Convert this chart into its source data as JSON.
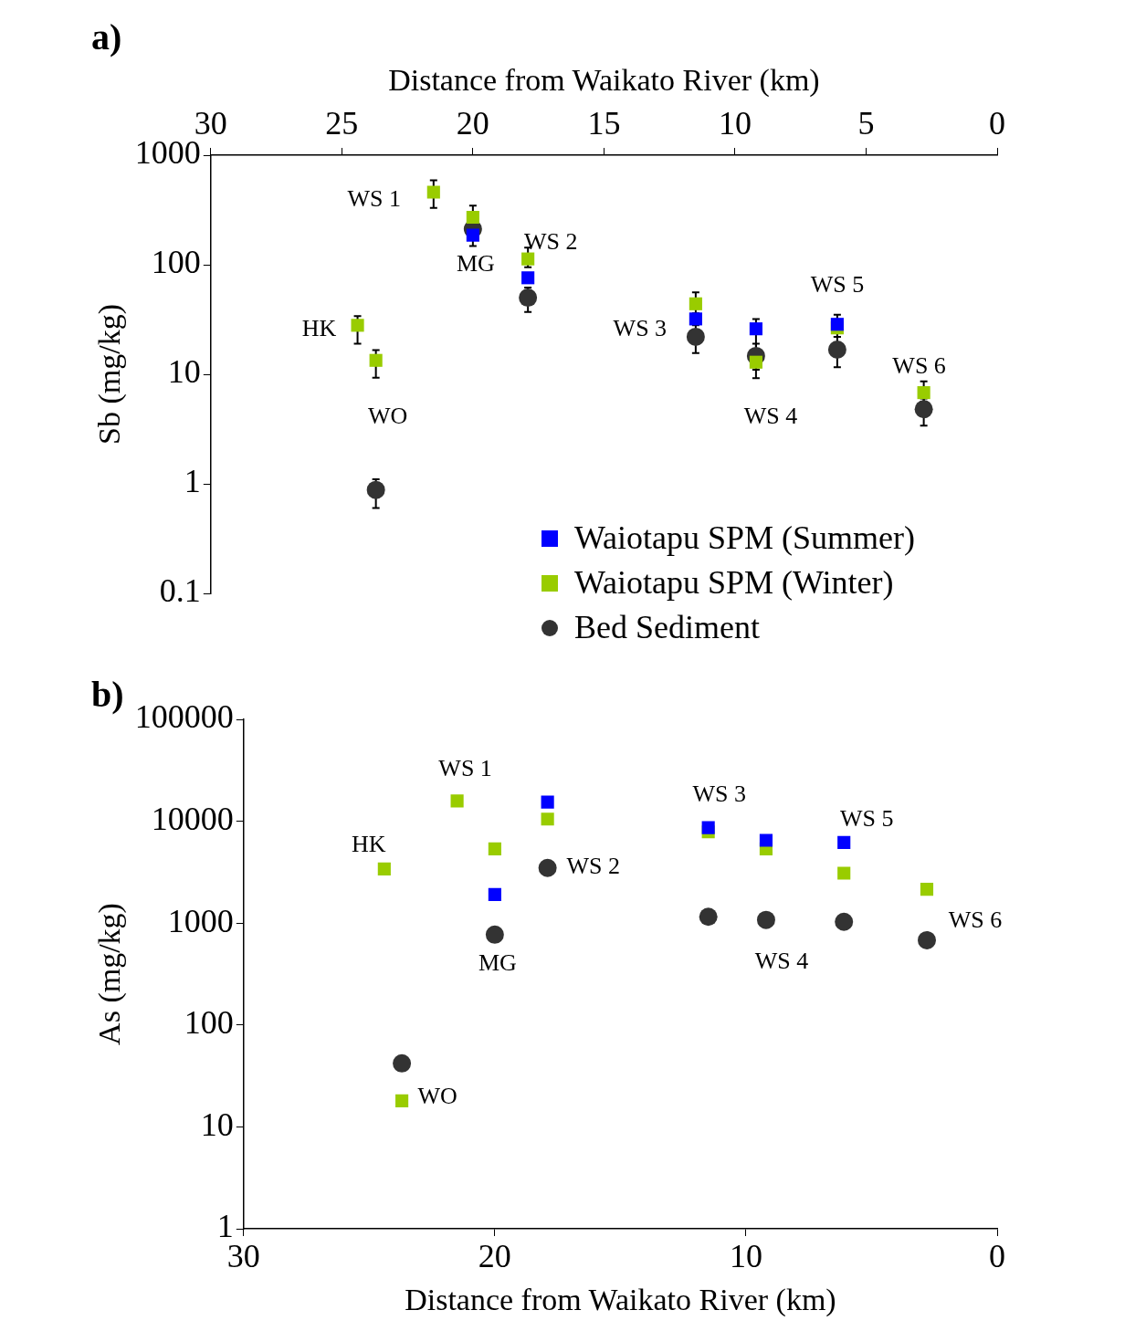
{
  "chart_data": [
    {
      "type": "scatter",
      "title": "a)",
      "xlabel": "Distance from Waikato River (km)",
      "ylabel": "Sb (mg/kg)",
      "xlim": [
        30,
        0
      ],
      "xticks": [
        30,
        25,
        20,
        15,
        10,
        5,
        0
      ],
      "ylim": [
        0.1,
        1000
      ],
      "yticks": [
        0.1,
        1,
        10,
        100,
        1000
      ],
      "log": "y",
      "grid": false,
      "legend": "bottom right",
      "series": [
        {
          "name": "Waiotapu SPM (Summer)",
          "color": "#0000ff",
          "marker": "square",
          "x": [
            20.0,
            17.9,
            11.5,
            9.2,
            6.1
          ],
          "values": [
            186,
            76,
            32,
            26,
            28.6
          ]
        },
        {
          "name": "Waiotapu SPM (Winter)",
          "color": "#99cc00",
          "marker": "square",
          "x": [
            24.4,
            23.7,
            21.5,
            20.0,
            17.9,
            11.5,
            9.2,
            6.1,
            2.8
          ],
          "values": [
            28,
            13.4,
            460,
            271,
            113,
            44,
            12.9,
            26.5,
            6.8
          ],
          "errors": [
            [
              19,
              34
            ],
            [
              9.3,
              16.6
            ],
            [
              330,
              590
            ],
            [
              220,
              347
            ],
            [
              95,
              143
            ],
            [
              36,
              56
            ],
            [
              9.2,
              32
            ],
            [
              22,
              35
            ],
            [
              5.6,
              8.6
            ]
          ]
        },
        {
          "name": "Bed Sediment",
          "color": "#333333",
          "marker": "circle",
          "x": [
            23.7,
            20.0,
            17.9,
            11.5,
            9.2,
            6.1,
            2.8
          ],
          "values": [
            0.88,
            212,
            50,
            22,
            14.7,
            16.8,
            4.8
          ],
          "errors": [
            [
              0.6,
              1.1
            ],
            [
              148,
              212
            ],
            [
              37,
              62
            ],
            [
              15.6,
              28
            ],
            [
              11,
              19
            ],
            [
              11.6,
              22
            ],
            [
              3.4,
              6
            ]
          ]
        }
      ],
      "annotations": [
        {
          "text": "WS 1",
          "x": 21.5,
          "y": 460
        },
        {
          "text": "MG",
          "x": 20.0,
          "y": 186
        },
        {
          "text": "WS 2",
          "x": 17.9,
          "y": 113
        },
        {
          "text": "HK",
          "x": 24.4,
          "y": 28
        },
        {
          "text": "WO",
          "x": 23.7,
          "y": 13.4
        },
        {
          "text": "WS 3",
          "x": 11.5,
          "y": 22
        },
        {
          "text": "WS 4",
          "x": 9.2,
          "y": 12.9
        },
        {
          "text": "WS 5",
          "x": 6.1,
          "y": 28.6
        },
        {
          "text": "WS 6",
          "x": 2.8,
          "y": 6.8
        }
      ]
    },
    {
      "type": "scatter",
      "title": "b)",
      "xlabel": "Distance from Waikato River (km)",
      "ylabel": "As (mg/kg)",
      "xlim": [
        30,
        0
      ],
      "xticks": [
        30,
        20,
        10,
        0
      ],
      "ylim": [
        1,
        100000
      ],
      "yticks": [
        1,
        10,
        100,
        1000,
        10000,
        100000
      ],
      "log": "y",
      "grid": false,
      "series": [
        {
          "color": "#0000ff",
          "marker": "square",
          "x": [
            20.0,
            17.9,
            11.5,
            9.2,
            6.1
          ],
          "values": [
            1910,
            15400,
            8660,
            6500,
            6190
          ]
        },
        {
          "color": "#99cc00",
          "marker": "square",
          "x": [
            24.4,
            23.7,
            21.5,
            20.0,
            17.9,
            11.5,
            9.2,
            6.1,
            2.8
          ],
          "values": [
            3400,
            18,
            15800,
            5360,
            10500,
            7870,
            5360,
            3090,
            2150
          ]
        },
        {
          "color": "#333333",
          "marker": "circle",
          "x": [
            23.7,
            20.0,
            17.9,
            11.5,
            9.2,
            6.1,
            2.8
          ],
          "values": [
            42,
            770,
            3480,
            1155,
            1075,
            1030,
            680
          ]
        }
      ],
      "annotations": [
        {
          "text": "WS 1",
          "x": 21.5,
          "y": 15800
        },
        {
          "text": "HK",
          "x": 24.4,
          "y": 3400
        },
        {
          "text": "MG",
          "x": 20.0,
          "y": 770
        },
        {
          "text": "WS 2",
          "x": 17.9,
          "y": 3480
        },
        {
          "text": "WS 3",
          "x": 11.5,
          "y": 8660
        },
        {
          "text": "WS 4",
          "x": 9.2,
          "y": 1075
        },
        {
          "text": "WS 5",
          "x": 6.1,
          "y": 6190
        },
        {
          "text": "WS 6",
          "x": 2.8,
          "y": 680
        },
        {
          "text": "WO",
          "x": 23.7,
          "y": 18
        }
      ]
    }
  ]
}
